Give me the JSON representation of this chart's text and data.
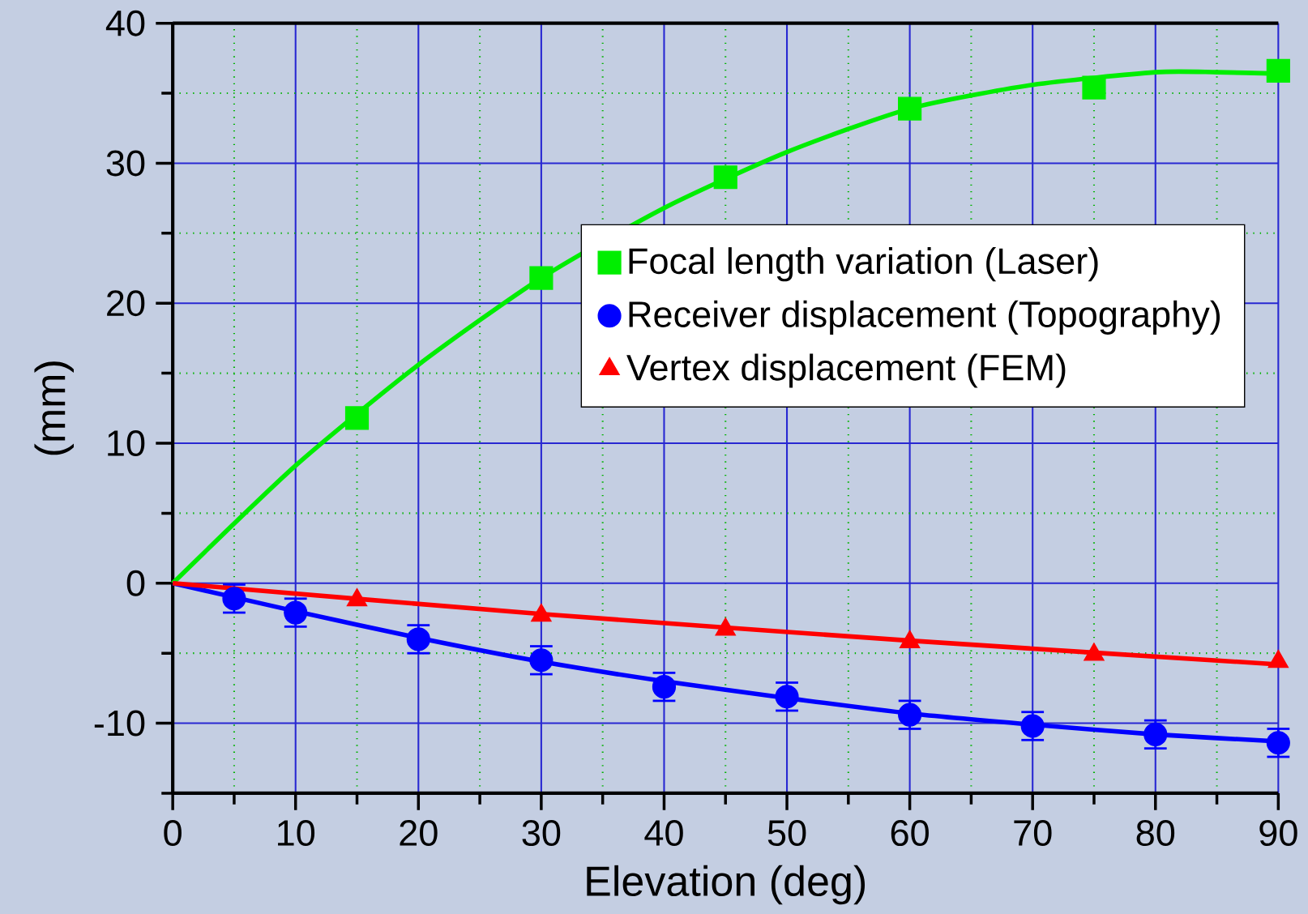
{
  "chart_data": {
    "type": "scatter",
    "xlabel": "Elevation (deg)",
    "ylabel": "(mm)",
    "xlim": [
      0,
      90
    ],
    "ylim": [
      -15,
      40
    ],
    "xticks": [
      0,
      {
        "value": 5,
        "label": null
      },
      10,
      {
        "value": 15,
        "label": null
      },
      20,
      {
        "value": 25,
        "label": null
      },
      30,
      {
        "value": 35,
        "label": null
      },
      40,
      {
        "value": 45,
        "label": null
      },
      50,
      {
        "value": 55,
        "label": null
      },
      60,
      {
        "value": 65,
        "label": null
      },
      70,
      {
        "value": 75,
        "label": null
      },
      80,
      {
        "value": 85,
        "label": null
      },
      90
    ],
    "yticks": [
      {
        "value": -15,
        "label": null
      },
      -10,
      {
        "value": -5,
        "label": null
      },
      0,
      {
        "value": 5,
        "label": null
      },
      10,
      {
        "value": 15,
        "label": null
      },
      20,
      {
        "value": 25,
        "label": null
      },
      30,
      {
        "value": 35,
        "label": null
      },
      40
    ],
    "grid": true,
    "legend": "right",
    "series": [
      {
        "name": "Focal length variation (Laser)",
        "marker": "square",
        "color": "#00ee00",
        "x": [
          15,
          30,
          45,
          60,
          75,
          90
        ],
        "values": [
          11.8,
          21.8,
          29.0,
          33.9,
          35.4,
          36.6
        ]
      },
      {
        "name": "Receiver displacement (Topography)",
        "marker": "circle",
        "color": "#0000ff",
        "x": [
          5,
          10,
          20,
          30,
          40,
          50,
          60,
          70,
          80,
          90
        ],
        "values": [
          -1.1,
          -2.1,
          -4.0,
          -5.5,
          -7.4,
          -8.1,
          -9.4,
          -10.2,
          -10.8,
          -11.4
        ],
        "errors": [
          1,
          1,
          1,
          1,
          1,
          1,
          1,
          1,
          1,
          1
        ]
      },
      {
        "name": "Vertex displacement (FEM)",
        "marker": "triangle",
        "color": "#ff0000",
        "x": [
          15,
          30,
          45,
          60,
          75,
          90
        ],
        "values": [
          -1.2,
          -2.3,
          -3.3,
          -4.2,
          -5.1,
          -5.6
        ]
      },
      {
        "type": "line",
        "color": "#00ee00",
        "x": [
          0,
          10,
          20,
          30,
          40,
          50,
          60,
          70,
          80,
          85,
          90
        ],
        "values": [
          0,
          8.4,
          15.6,
          21.8,
          26.8,
          30.8,
          33.9,
          35.6,
          36.5,
          36.5,
          36.4
        ]
      },
      {
        "type": "line",
        "color": "#0000ff",
        "x": [
          0,
          10,
          20,
          30,
          40,
          50,
          60,
          70,
          80,
          90
        ],
        "values": [
          0,
          -2.0,
          -3.9,
          -5.6,
          -7.0,
          -8.2,
          -9.3,
          -10.1,
          -10.8,
          -11.3
        ]
      },
      {
        "type": "line",
        "color": "#ff0000",
        "x": [
          0,
          30,
          60,
          90
        ],
        "values": [
          0,
          -2.2,
          -4.1,
          -5.8
        ]
      }
    ]
  }
}
